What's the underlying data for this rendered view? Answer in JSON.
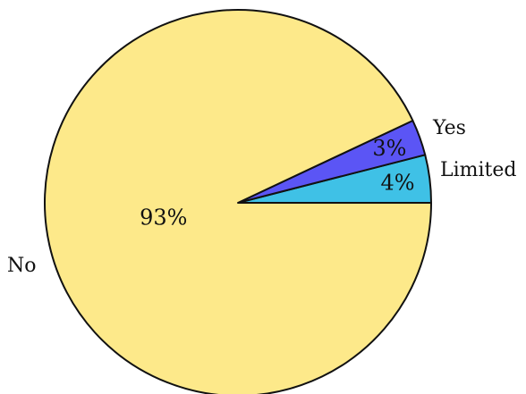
{
  "chart_data": {
    "type": "pie",
    "slices": [
      {
        "label": "Yes",
        "value": 4,
        "value_label": "4%",
        "color": "#3FC1E6"
      },
      {
        "label": "Limited",
        "value": 3,
        "value_label": "3%",
        "color": "#5B55F5"
      },
      {
        "label": "No",
        "value": 93,
        "value_label": "93%",
        "color": "#FDE98A"
      }
    ],
    "edge_color": "#111111",
    "start_angle_deg": 0,
    "direction": "counterclockwise",
    "title": ""
  }
}
